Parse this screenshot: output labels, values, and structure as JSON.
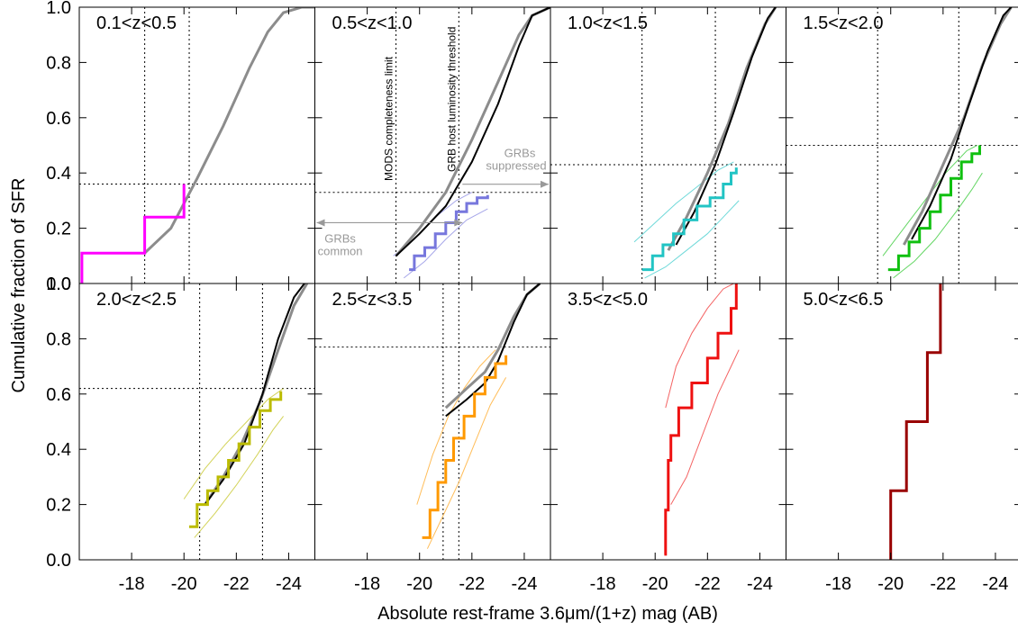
{
  "figure": {
    "ylabel": "Cumulative fraction of SFR",
    "xlabel": "Absolute rest-frame 3.6μm/(1+z) mag (AB)"
  },
  "annotations": {
    "mods_label": "MODS completeness limit",
    "grb_label": "GRB host luminosity threshold",
    "suppressed_line1": "GRBs",
    "suppressed_line2": "suppressed",
    "common_line1": "GRBs",
    "common_line2": "common"
  },
  "chart_data": [
    {
      "type": "line",
      "title": "0.1<z<0.5",
      "color": "#ff00ff",
      "xlim": [
        -16.0,
        -25.0
      ],
      "ylim": [
        0.0,
        1.0
      ],
      "xticks": [
        -18,
        -20,
        -22,
        -24
      ],
      "yticks": [
        0.0,
        0.2,
        0.4,
        0.6,
        0.8,
        1.0
      ],
      "ref_threshold": {
        "x": -20.2,
        "y": 0.36
      },
      "mods_limit_x": -18.5,
      "grb_steps": [
        [
          -16.1,
          0.0
        ],
        [
          -16.1,
          0.11
        ],
        [
          -18.5,
          0.11
        ],
        [
          -18.5,
          0.24
        ],
        [
          -20.0,
          0.24
        ],
        [
          -20.0,
          0.36
        ]
      ],
      "grb_band": null,
      "grey_curve": [
        [
          -18.5,
          0.11
        ],
        [
          -19.5,
          0.2
        ],
        [
          -20.5,
          0.38
        ],
        [
          -21.5,
          0.57
        ],
        [
          -22.5,
          0.78
        ],
        [
          -23.2,
          0.91
        ],
        [
          -23.8,
          0.98
        ],
        [
          -24.5,
          1.0
        ],
        [
          -25.0,
          1.0
        ]
      ],
      "black_curve": null
    },
    {
      "type": "line",
      "title": "0.5<z<1.0",
      "color": "#7777dd",
      "xlim": [
        -16.0,
        -25.0
      ],
      "ylim": [
        0.0,
        1.0
      ],
      "xticks": [
        -18,
        -20,
        -22,
        -24
      ],
      "yticks": [
        0.0,
        0.2,
        0.4,
        0.6,
        0.8,
        1.0
      ],
      "ref_threshold": {
        "x": -21.5,
        "y": 0.33
      },
      "mods_limit_x": -19.1,
      "grb_steps": [
        [
          -19.6,
          0.05
        ],
        [
          -19.8,
          0.1
        ],
        [
          -20.2,
          0.13
        ],
        [
          -20.6,
          0.18
        ],
        [
          -21.0,
          0.22
        ],
        [
          -21.4,
          0.26
        ],
        [
          -21.8,
          0.29
        ],
        [
          -22.2,
          0.31
        ],
        [
          -22.6,
          0.32
        ]
      ],
      "grb_band": {
        "upper": [
          [
            -19.0,
            0.1
          ],
          [
            -19.8,
            0.16
          ],
          [
            -20.6,
            0.24
          ],
          [
            -21.4,
            0.3
          ],
          [
            -22.0,
            0.33
          ]
        ],
        "lower": [
          [
            -19.4,
            0.02
          ],
          [
            -20.2,
            0.08
          ],
          [
            -21.0,
            0.16
          ],
          [
            -21.8,
            0.23
          ],
          [
            -22.6,
            0.27
          ]
        ]
      },
      "grey_curve": [
        [
          -19.1,
          0.1
        ],
        [
          -20.0,
          0.2
        ],
        [
          -21.0,
          0.33
        ],
        [
          -22.0,
          0.52
        ],
        [
          -23.0,
          0.73
        ],
        [
          -23.8,
          0.9
        ],
        [
          -24.3,
          0.97
        ],
        [
          -25.0,
          1.0
        ]
      ],
      "black_curve": [
        [
          -19.1,
          0.1
        ],
        [
          -20.0,
          0.18
        ],
        [
          -21.0,
          0.28
        ],
        [
          -22.0,
          0.44
        ],
        [
          -23.0,
          0.65
        ],
        [
          -23.8,
          0.86
        ],
        [
          -24.3,
          0.97
        ],
        [
          -25.0,
          1.0
        ]
      ]
    },
    {
      "type": "line",
      "title": "1.0<z<1.5",
      "color": "#22c4c4",
      "xlim": [
        -16.0,
        -25.0
      ],
      "ylim": [
        0.0,
        1.0
      ],
      "xticks": [
        -18,
        -20,
        -22,
        -24
      ],
      "yticks": [
        0.0,
        0.2,
        0.4,
        0.6,
        0.8,
        1.0
      ],
      "ref_threshold": {
        "x": -22.3,
        "y": 0.43
      },
      "mods_limit_x": -19.5,
      "grb_steps": [
        [
          -19.5,
          0.05
        ],
        [
          -19.9,
          0.1
        ],
        [
          -20.3,
          0.14
        ],
        [
          -20.7,
          0.18
        ],
        [
          -21.1,
          0.23
        ],
        [
          -21.6,
          0.28
        ],
        [
          -22.1,
          0.31
        ],
        [
          -22.6,
          0.36
        ],
        [
          -22.9,
          0.4
        ],
        [
          -23.1,
          0.42
        ]
      ],
      "grb_band": {
        "upper": [
          [
            -19.2,
            0.15
          ],
          [
            -20.0,
            0.22
          ],
          [
            -20.8,
            0.29
          ],
          [
            -21.6,
            0.35
          ],
          [
            -22.4,
            0.41
          ],
          [
            -23.0,
            0.44
          ]
        ],
        "lower": [
          [
            -19.6,
            0.02
          ],
          [
            -20.4,
            0.06
          ],
          [
            -21.2,
            0.12
          ],
          [
            -22.0,
            0.18
          ],
          [
            -22.6,
            0.24
          ],
          [
            -23.2,
            0.3
          ]
        ]
      },
      "grey_curve": [
        [
          -20.5,
          0.12
        ],
        [
          -21.2,
          0.24
        ],
        [
          -22.0,
          0.4
        ],
        [
          -22.8,
          0.58
        ],
        [
          -23.5,
          0.78
        ],
        [
          -24.2,
          0.94
        ],
        [
          -24.6,
          1.0
        ]
      ],
      "black_curve": [
        [
          -20.8,
          0.14
        ],
        [
          -21.5,
          0.26
        ],
        [
          -22.3,
          0.43
        ],
        [
          -23.0,
          0.62
        ],
        [
          -23.7,
          0.82
        ],
        [
          -24.3,
          0.96
        ],
        [
          -24.6,
          1.0
        ]
      ]
    },
    {
      "type": "line",
      "title": "1.5<z<2.0",
      "color": "#10c010",
      "xlim": [
        -16.0,
        -25.0
      ],
      "ylim": [
        0.0,
        1.0
      ],
      "xticks": [
        -18,
        -20,
        -22,
        -24
      ],
      "yticks": [
        0.0,
        0.2,
        0.4,
        0.6,
        0.8,
        1.0
      ],
      "ref_threshold": {
        "x": -22.6,
        "y": 0.5
      },
      "mods_limit_x": -19.5,
      "grb_steps": [
        [
          -19.9,
          0.05
        ],
        [
          -20.3,
          0.1
        ],
        [
          -20.7,
          0.15
        ],
        [
          -21.1,
          0.2
        ],
        [
          -21.5,
          0.26
        ],
        [
          -21.9,
          0.32
        ],
        [
          -22.3,
          0.38
        ],
        [
          -22.7,
          0.44
        ],
        [
          -23.1,
          0.47
        ],
        [
          -23.4,
          0.5
        ]
      ],
      "grb_band": {
        "upper": [
          [
            -19.7,
            0.1
          ],
          [
            -20.5,
            0.2
          ],
          [
            -21.3,
            0.3
          ],
          [
            -22.1,
            0.4
          ],
          [
            -22.9,
            0.48
          ],
          [
            -23.3,
            0.5
          ]
        ],
        "lower": [
          [
            -20.1,
            0.02
          ],
          [
            -20.9,
            0.08
          ],
          [
            -21.7,
            0.16
          ],
          [
            -22.5,
            0.26
          ],
          [
            -23.1,
            0.34
          ],
          [
            -23.5,
            0.4
          ]
        ]
      },
      "grey_curve": [
        [
          -20.5,
          0.14
        ],
        [
          -21.2,
          0.26
        ],
        [
          -22.0,
          0.43
        ],
        [
          -22.8,
          0.6
        ],
        [
          -23.5,
          0.79
        ],
        [
          -24.2,
          0.94
        ],
        [
          -24.6,
          1.0
        ]
      ],
      "black_curve": [
        [
          -20.8,
          0.16
        ],
        [
          -21.5,
          0.28
        ],
        [
          -22.3,
          0.45
        ],
        [
          -23.0,
          0.65
        ],
        [
          -23.7,
          0.84
        ],
        [
          -24.3,
          0.97
        ],
        [
          -24.6,
          1.0
        ]
      ]
    },
    {
      "type": "line",
      "title": "2.0<z<2.5",
      "color": "#bbbb00",
      "xlim": [
        -16.0,
        -25.0
      ],
      "ylim": [
        0.0,
        1.0
      ],
      "xticks": [
        -18,
        -20,
        -22,
        -24
      ],
      "yticks": [
        0.0,
        0.2,
        0.4,
        0.6,
        0.8,
        1.0
      ],
      "ref_threshold": {
        "x": -23.0,
        "y": 0.62
      },
      "mods_limit_x": -20.6,
      "grb_steps": [
        [
          -20.2,
          0.12
        ],
        [
          -20.5,
          0.2
        ],
        [
          -20.9,
          0.25
        ],
        [
          -21.3,
          0.3
        ],
        [
          -21.7,
          0.36
        ],
        [
          -22.1,
          0.42
        ],
        [
          -22.5,
          0.48
        ],
        [
          -22.9,
          0.54
        ],
        [
          -23.3,
          0.58
        ],
        [
          -23.7,
          0.61
        ]
      ],
      "grb_band": {
        "upper": [
          [
            -20.0,
            0.22
          ],
          [
            -20.8,
            0.33
          ],
          [
            -21.6,
            0.42
          ],
          [
            -22.4,
            0.5
          ],
          [
            -23.2,
            0.58
          ],
          [
            -23.8,
            0.62
          ]
        ],
        "lower": [
          [
            -20.4,
            0.08
          ],
          [
            -21.2,
            0.17
          ],
          [
            -22.0,
            0.27
          ],
          [
            -22.8,
            0.38
          ],
          [
            -23.4,
            0.47
          ],
          [
            -23.8,
            0.52
          ]
        ]
      },
      "grey_curve": [
        [
          -20.8,
          0.2
        ],
        [
          -21.5,
          0.3
        ],
        [
          -22.2,
          0.42
        ],
        [
          -22.9,
          0.57
        ],
        [
          -23.6,
          0.76
        ],
        [
          -24.2,
          0.92
        ],
        [
          -24.7,
          1.0
        ]
      ],
      "black_curve": [
        [
          -20.8,
          0.2
        ],
        [
          -21.5,
          0.29
        ],
        [
          -22.3,
          0.42
        ],
        [
          -23.0,
          0.6
        ],
        [
          -23.6,
          0.8
        ],
        [
          -24.2,
          0.95
        ],
        [
          -24.6,
          1.0
        ]
      ]
    },
    {
      "type": "line",
      "title": "2.5<z<3.5",
      "color": "#ff9900",
      "xlim": [
        -16.0,
        -25.0
      ],
      "ylim": [
        0.0,
        1.0
      ],
      "xticks": [
        -18,
        -20,
        -22,
        -24
      ],
      "yticks": [
        0.0,
        0.2,
        0.4,
        0.6,
        0.8,
        1.0
      ],
      "ref_threshold": {
        "x": -21.5,
        "y": 0.77
      },
      "mods_limit_x": -20.9,
      "grb_steps": [
        [
          -20.1,
          0.08
        ],
        [
          -20.4,
          0.18
        ],
        [
          -20.7,
          0.28
        ],
        [
          -21.0,
          0.36
        ],
        [
          -21.3,
          0.44
        ],
        [
          -21.7,
          0.52
        ],
        [
          -22.1,
          0.6
        ],
        [
          -22.5,
          0.66
        ],
        [
          -22.9,
          0.71
        ],
        [
          -23.3,
          0.74
        ]
      ],
      "grb_band": {
        "upper": [
          [
            -19.9,
            0.2
          ],
          [
            -20.5,
            0.38
          ],
          [
            -21.1,
            0.52
          ],
          [
            -21.7,
            0.62
          ],
          [
            -22.3,
            0.7
          ],
          [
            -22.9,
            0.76
          ]
        ],
        "lower": [
          [
            -20.3,
            0.04
          ],
          [
            -20.9,
            0.16
          ],
          [
            -21.5,
            0.28
          ],
          [
            -22.1,
            0.42
          ],
          [
            -22.7,
            0.56
          ],
          [
            -23.3,
            0.66
          ]
        ]
      },
      "grey_curve": [
        [
          -21.0,
          0.55
        ],
        [
          -21.8,
          0.62
        ],
        [
          -22.5,
          0.68
        ],
        [
          -23.0,
          0.76
        ],
        [
          -23.6,
          0.88
        ],
        [
          -24.1,
          0.96
        ],
        [
          -24.6,
          1.0
        ]
      ],
      "black_curve": [
        [
          -21.0,
          0.52
        ],
        [
          -21.8,
          0.58
        ],
        [
          -22.5,
          0.64
        ],
        [
          -23.0,
          0.72
        ],
        [
          -23.6,
          0.86
        ],
        [
          -24.1,
          0.96
        ],
        [
          -24.6,
          1.0
        ]
      ]
    },
    {
      "type": "line",
      "title": "3.5<z<5.0",
      "color": "#ee1111",
      "xlim": [
        -16.0,
        -25.0
      ],
      "ylim": [
        0.0,
        1.0
      ],
      "xticks": [
        -18,
        -20,
        -22,
        -24
      ],
      "yticks": [
        0.0,
        0.2,
        0.4,
        0.6,
        0.8,
        1.0
      ],
      "ref_threshold": null,
      "mods_limit_x": null,
      "grb_steps": [
        [
          -20.35,
          0.02
        ],
        [
          -20.4,
          0.18
        ],
        [
          -20.5,
          0.36
        ],
        [
          -20.6,
          0.45
        ],
        [
          -20.9,
          0.55
        ],
        [
          -21.4,
          0.64
        ],
        [
          -22.0,
          0.73
        ],
        [
          -22.4,
          0.82
        ],
        [
          -22.9,
          0.91
        ],
        [
          -23.1,
          1.0
        ]
      ],
      "grb_band": {
        "upper": [
          [
            -20.4,
            0.55
          ],
          [
            -20.8,
            0.7
          ],
          [
            -21.4,
            0.82
          ],
          [
            -22.0,
            0.91
          ],
          [
            -22.6,
            0.98
          ],
          [
            -23.0,
            1.0
          ]
        ],
        "lower": [
          [
            -20.6,
            0.2
          ],
          [
            -21.2,
            0.3
          ],
          [
            -21.8,
            0.45
          ],
          [
            -22.4,
            0.6
          ],
          [
            -23.0,
            0.72
          ],
          [
            -23.2,
            0.76
          ]
        ]
      },
      "grey_curve": null,
      "black_curve": null
    },
    {
      "type": "line",
      "title": "5.0<z<6.5",
      "color": "#990000",
      "xlim": [
        -16.0,
        -25.0
      ],
      "ylim": [
        0.0,
        1.0
      ],
      "xticks": [
        -18,
        -20,
        -22,
        -24
      ],
      "yticks": [
        0.0,
        0.2,
        0.4,
        0.6,
        0.8,
        1.0
      ],
      "ref_threshold": null,
      "mods_limit_x": null,
      "grb_steps": [
        [
          -20.0,
          0.0
        ],
        [
          -20.0,
          0.25
        ],
        [
          -20.6,
          0.25
        ],
        [
          -20.6,
          0.5
        ],
        [
          -21.4,
          0.5
        ],
        [
          -21.4,
          0.75
        ],
        [
          -21.9,
          0.75
        ],
        [
          -21.9,
          1.0
        ]
      ],
      "grb_band": null,
      "grey_curve": null,
      "black_curve": null
    }
  ]
}
